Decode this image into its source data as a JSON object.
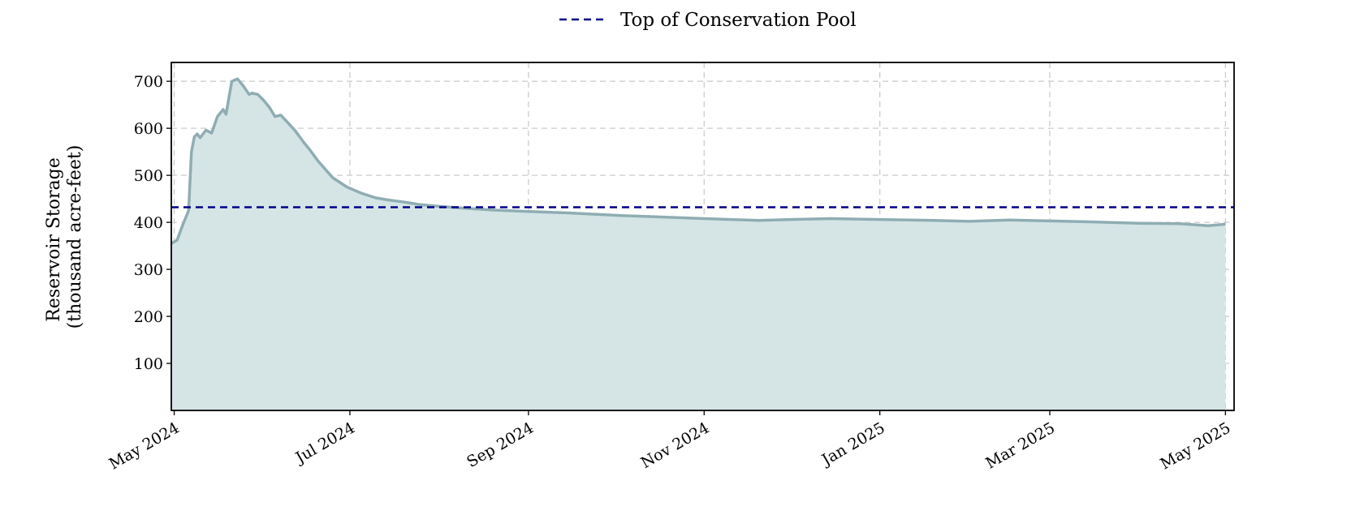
{
  "chart_data": {
    "type": "area",
    "title": "",
    "xlabel": "",
    "ylabel_lines": [
      "Reservoir Storage",
      "(thousand acre-feet)"
    ],
    "x_ticks": [
      {
        "date": "2024-05-01",
        "label": "May 2024"
      },
      {
        "date": "2024-07-01",
        "label": "Jul 2024"
      },
      {
        "date": "2024-09-01",
        "label": "Sep 2024"
      },
      {
        "date": "2024-11-01",
        "label": "Nov 2024"
      },
      {
        "date": "2025-01-01",
        "label": "Jan 2025"
      },
      {
        "date": "2025-03-01",
        "label": "Mar 2025"
      },
      {
        "date": "2025-05-01",
        "label": "May 2025"
      }
    ],
    "y_ticks": [
      100,
      200,
      300,
      400,
      500,
      600,
      700
    ],
    "xlim": [
      "2024-04-30",
      "2025-05-04"
    ],
    "ylim": [
      0,
      740
    ],
    "grid": true,
    "legend_position": "top-center",
    "reference_lines": [
      {
        "name": "Top of Conservation Pool",
        "value": 432,
        "color": "#00008b",
        "style": "dashed"
      }
    ],
    "series": [
      {
        "color": "#8fadb3",
        "fill_color": "#d5e5e6",
        "x": [
          "2024-04-30",
          "2024-05-02",
          "2024-05-04",
          "2024-05-06",
          "2024-05-07",
          "2024-05-08",
          "2024-05-09",
          "2024-05-10",
          "2024-05-12",
          "2024-05-14",
          "2024-05-16",
          "2024-05-18",
          "2024-05-19",
          "2024-05-21",
          "2024-05-23",
          "2024-05-25",
          "2024-05-27",
          "2024-05-28",
          "2024-05-30",
          "2024-06-01",
          "2024-06-03",
          "2024-06-05",
          "2024-06-07",
          "2024-06-09",
          "2024-06-12",
          "2024-06-15",
          "2024-06-17",
          "2024-06-20",
          "2024-06-25",
          "2024-06-30",
          "2024-07-05",
          "2024-07-10",
          "2024-07-15",
          "2024-07-20",
          "2024-07-25",
          "2024-08-01",
          "2024-08-10",
          "2024-08-20",
          "2024-09-01",
          "2024-09-15",
          "2024-10-01",
          "2024-10-15",
          "2024-11-01",
          "2024-11-20",
          "2024-12-01",
          "2024-12-15",
          "2025-01-01",
          "2025-01-20",
          "2025-02-01",
          "2025-02-15",
          "2025-03-01",
          "2025-03-15",
          "2025-04-01",
          "2025-04-15",
          "2025-04-25",
          "2025-05-01"
        ],
        "y": [
          355,
          362,
          395,
          425,
          550,
          582,
          588,
          580,
          596,
          590,
          625,
          640,
          630,
          700,
          705,
          690,
          672,
          675,
          672,
          660,
          645,
          625,
          628,
          615,
          595,
          570,
          555,
          530,
          495,
          475,
          462,
          452,
          447,
          443,
          438,
          434,
          430,
          426,
          423,
          420,
          415,
          412,
          408,
          404,
          406,
          408,
          406,
          404,
          402,
          405,
          403,
          401,
          398,
          397,
          393,
          396
        ]
      }
    ]
  }
}
